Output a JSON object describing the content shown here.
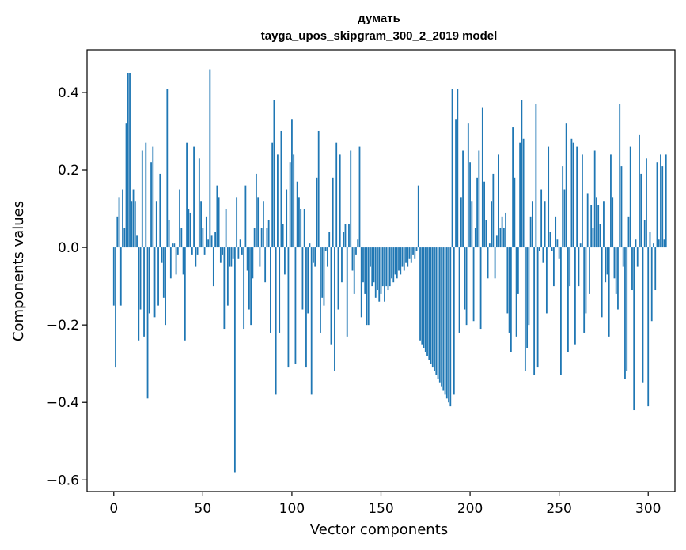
{
  "chart_data": {
    "type": "bar",
    "title": "думать",
    "subtitle": "tayga_upos_skipgram_300_2_2019 model",
    "xlabel": "Vector components",
    "ylabel": "Components values",
    "xlim": [
      -15,
      315
    ],
    "ylim": [
      -0.63,
      0.51
    ],
    "xticks": [
      0,
      50,
      100,
      150,
      200,
      250,
      300
    ],
    "xtick_labels": [
      "0",
      "50",
      "100",
      "150",
      "200",
      "250",
      "300"
    ],
    "yticks": [
      0.4,
      0.2,
      0.0,
      -0.2,
      -0.4,
      -0.6
    ],
    "ytick_labels": [
      "0.4",
      "0.2",
      "0.0",
      "−0.2",
      "−0.4",
      "−0.6"
    ],
    "bar_color": "#1f77b4",
    "categories_start": 0,
    "values": [
      -0.15,
      -0.31,
      0.08,
      0.13,
      -0.15,
      0.15,
      0.05,
      0.32,
      0.45,
      0.45,
      0.12,
      0.15,
      0.12,
      0.03,
      -0.24,
      -0.16,
      0.25,
      -0.23,
      0.27,
      -0.39,
      -0.17,
      0.22,
      0.26,
      -0.18,
      0.12,
      -0.15,
      0.19,
      -0.04,
      -0.13,
      -0.2,
      0.41,
      0.07,
      -0.08,
      0.01,
      0.01,
      -0.07,
      -0.02,
      0.15,
      0.05,
      -0.07,
      -0.24,
      0.27,
      0.1,
      0.09,
      -0.02,
      0.26,
      -0.05,
      -0.02,
      0.23,
      0.12,
      0.05,
      -0.02,
      0.08,
      0.02,
      0.46,
      0.03,
      -0.1,
      0.04,
      0.16,
      0.13,
      -0.04,
      -0.02,
      -0.21,
      0.1,
      -0.15,
      -0.05,
      -0.05,
      -0.03,
      -0.58,
      0.13,
      -0.03,
      0.02,
      -0.02,
      -0.21,
      0.16,
      -0.06,
      -0.16,
      -0.2,
      -0.08,
      0.05,
      0.19,
      0.13,
      -0.05,
      0.05,
      0.12,
      -0.09,
      0.05,
      0.07,
      -0.22,
      0.27,
      0.38,
      -0.38,
      0.24,
      -0.22,
      0.3,
      0.06,
      -0.07,
      0.15,
      -0.31,
      0.22,
      0.33,
      0.24,
      -0.3,
      0.17,
      0.13,
      0.1,
      -0.16,
      0.1,
      -0.31,
      -0.17,
      0.01,
      -0.38,
      -0.04,
      -0.05,
      0.18,
      0.3,
      -0.22,
      -0.13,
      -0.15,
      -0.01,
      -0.05,
      0.04,
      -0.25,
      0.18,
      -0.32,
      0.27,
      -0.16,
      0.24,
      -0.09,
      0.04,
      0.06,
      -0.23,
      0.06,
      0.25,
      -0.06,
      -0.12,
      -0.02,
      0.02,
      0.26,
      -0.18,
      -0.09,
      -0.12,
      -0.2,
      -0.2,
      -0.05,
      -0.1,
      -0.09,
      -0.13,
      -0.11,
      -0.14,
      -0.12,
      -0.1,
      -0.14,
      -0.1,
      -0.11,
      -0.1,
      -0.08,
      -0.09,
      -0.07,
      -0.08,
      -0.06,
      -0.07,
      -0.05,
      -0.06,
      -0.04,
      -0.05,
      -0.03,
      -0.04,
      -0.02,
      -0.03,
      -0.01,
      0.16,
      -0.24,
      -0.25,
      -0.26,
      -0.27,
      -0.28,
      -0.29,
      -0.3,
      -0.31,
      -0.32,
      -0.33,
      -0.34,
      -0.35,
      -0.36,
      -0.37,
      -0.38,
      -0.39,
      -0.4,
      -0.41,
      0.41,
      -0.38,
      0.33,
      0.41,
      -0.22,
      0.13,
      0.25,
      -0.16,
      -0.2,
      0.32,
      0.22,
      0.12,
      -0.19,
      0.05,
      0.18,
      0.25,
      -0.21,
      0.36,
      0.17,
      0.07,
      -0.08,
      0.01,
      0.12,
      0.19,
      -0.08,
      0.03,
      0.24,
      0.05,
      0.08,
      0.05,
      0.09,
      -0.17,
      -0.22,
      -0.27,
      0.31,
      0.18,
      -0.23,
      -0.12,
      0.27,
      0.38,
      0.28,
      -0.32,
      -0.26,
      -0.2,
      0.08,
      0.12,
      -0.33,
      0.37,
      -0.31,
      -0.01,
      0.15,
      -0.04,
      0.12,
      -0.17,
      0.26,
      0.04,
      -0.01,
      -0.1,
      0.08,
      0.02,
      -0.03,
      -0.33,
      0.21,
      0.15,
      0.32,
      -0.27,
      -0.1,
      0.28,
      0.27,
      -0.25,
      0.26,
      -0.1,
      0.01,
      0.24,
      -0.22,
      -0.17,
      0.14,
      -0.12,
      0.11,
      0.05,
      0.25,
      0.13,
      0.11,
      0.06,
      -0.18,
      0.12,
      -0.09,
      -0.07,
      -0.23,
      0.24,
      0.13,
      -0.08,
      -0.12,
      -0.16,
      0.37,
      0.21,
      -0.05,
      -0.34,
      -0.32,
      0.08,
      0.26,
      -0.11,
      -0.42,
      0.02,
      -0.05,
      0.29,
      0.19,
      -0.35,
      0.07,
      0.23,
      -0.41,
      0.04,
      -0.19,
      0.01,
      -0.11,
      0.22,
      0.02,
      0.24,
      0.21,
      0.02,
      0.24
    ]
  }
}
